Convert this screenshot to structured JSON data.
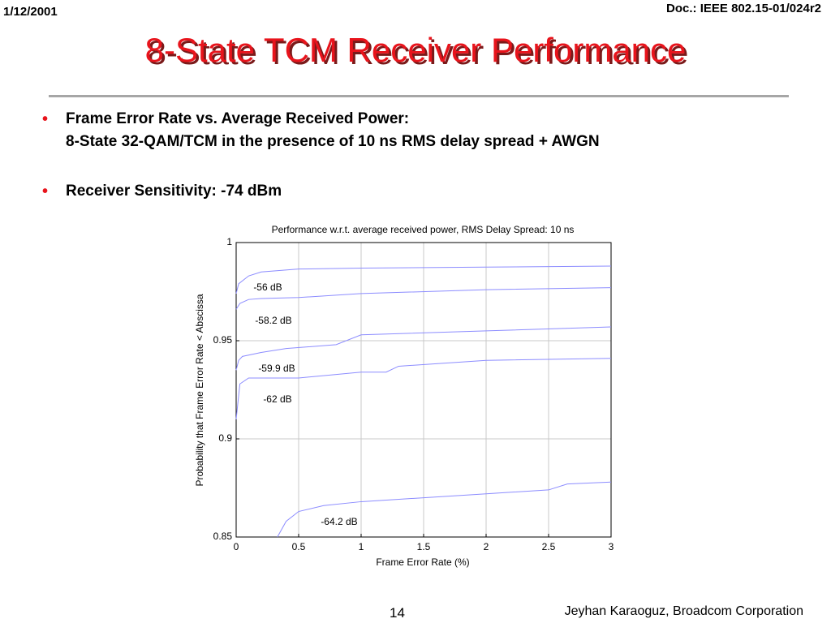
{
  "header": {
    "date": "1/12/2001",
    "doc": "Doc.: IEEE 802.15-01/024r2",
    "title": "8-State TCM Receiver Performance"
  },
  "bullets": [
    {
      "lines": [
        "Frame Error Rate vs. Average Received Power:",
        "8-State 32-QAM/TCM in the presence of 10 ns RMS delay spread + AWGN"
      ]
    },
    {
      "lines": [
        "Receiver Sensitivity: -74 dBm"
      ]
    }
  ],
  "chart_data": {
    "type": "line",
    "title": "Performance w.r.t. average received power, RMS Delay Spread: 10 ns",
    "xlabel": "Frame Error Rate (%)",
    "ylabel": "Probability that Frame Error Rate < Abscissa",
    "xlim": [
      0,
      3
    ],
    "ylim": [
      0.85,
      1
    ],
    "xticks": [
      0,
      0.5,
      1,
      1.5,
      2,
      2.5,
      3
    ],
    "yticks": [
      0.85,
      0.9,
      0.95,
      1
    ],
    "grid": true,
    "series": [
      {
        "name": "-56 dB",
        "color": "#8c8cff",
        "x": [
          0,
          0.02,
          0.1,
          0.2,
          0.5,
          1,
          2,
          3
        ],
        "values": [
          0.974,
          0.979,
          0.983,
          0.985,
          0.9865,
          0.987,
          0.9875,
          0.988
        ]
      },
      {
        "name": "-58.2 dB",
        "color": "#8c8cff",
        "x": [
          0,
          0.03,
          0.1,
          0.2,
          0.5,
          1,
          2,
          3
        ],
        "values": [
          0.966,
          0.969,
          0.971,
          0.9715,
          0.972,
          0.974,
          0.976,
          0.977
        ]
      },
      {
        "name": "-59.9 dB",
        "color": "#8c8cff",
        "x": [
          0,
          0.02,
          0.05,
          0.2,
          0.4,
          0.8,
          1,
          2,
          3
        ],
        "values": [
          0.935,
          0.94,
          0.942,
          0.944,
          0.946,
          0.948,
          0.953,
          0.955,
          0.957
        ]
      },
      {
        "name": "-62 dB",
        "color": "#8c8cff",
        "x": [
          0,
          0.03,
          0.1,
          0.5,
          1,
          1.2,
          1.3,
          2,
          3
        ],
        "values": [
          0.91,
          0.928,
          0.931,
          0.931,
          0.934,
          0.934,
          0.937,
          0.94,
          0.941
        ]
      },
      {
        "name": "-64.2 dB",
        "color": "#8c8cff",
        "x": [
          0.33,
          0.4,
          0.5,
          0.7,
          1,
          1.5,
          2,
          2.5,
          2.65,
          3
        ],
        "values": [
          0.85,
          0.858,
          0.863,
          0.866,
          0.868,
          0.87,
          0.872,
          0.874,
          0.877,
          0.878
        ]
      }
    ]
  },
  "footer": {
    "page": "14",
    "author": "Jeyhan Karaoguz, Broadcom Corporation"
  }
}
